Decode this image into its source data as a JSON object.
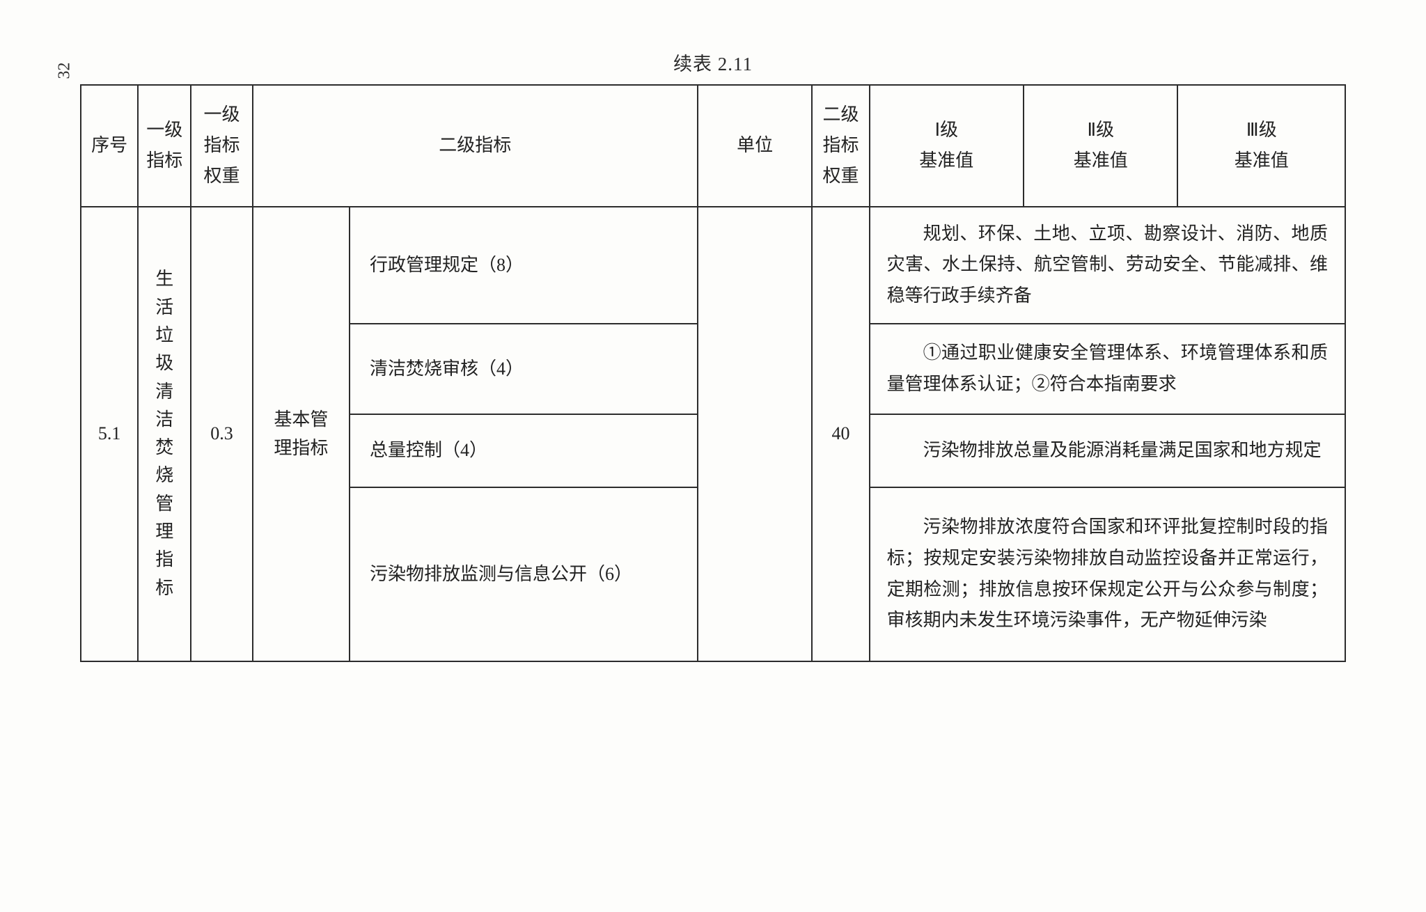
{
  "page_number": "32",
  "caption": "续表 2.11",
  "headers": {
    "seq": "序号",
    "level1": "一级指标",
    "level1_weight": "一级指标权重",
    "level2": "二级指标",
    "unit": "单位",
    "level2_weight": "二级指标权重",
    "benchmark1": "Ⅰ级基准值",
    "benchmark2": "Ⅱ级基准值",
    "benchmark3": "Ⅲ级基准值"
  },
  "row": {
    "seq": "5.1",
    "level1_label": "生活垃圾清洁焚烧管理指标",
    "level1_label_vert": "生\n活\n垃\n圾\n清\n洁\n焚\n烧\n管\n理\n指\n标",
    "level1_weight": "0.3",
    "level2_category": "基本管理指标",
    "level2_weight": "40",
    "items": [
      {
        "name": "行政管理规定（8）",
        "desc": "规划、环保、土地、立项、勘察设计、消防、地质灾害、水土保持、航空管制、劳动安全、节能减排、维稳等行政手续齐备"
      },
      {
        "name": "清洁焚烧审核（4）",
        "desc": "①通过职业健康安全管理体系、环境管理体系和质量管理体系认证；②符合本指南要求"
      },
      {
        "name": "总量控制（4）",
        "desc": "污染物排放总量及能源消耗量满足国家和地方规定"
      },
      {
        "name": "污染物排放监测与信息公开（6）",
        "desc": "污染物排放浓度符合国家和环评批复控制时段的指标；按规定安装污染物排放自动监控设备并正常运行，定期检测；排放信息按环保规定公开与公众参与制度；审核期内未发生环境污染事件，无产物延伸污染"
      }
    ]
  }
}
